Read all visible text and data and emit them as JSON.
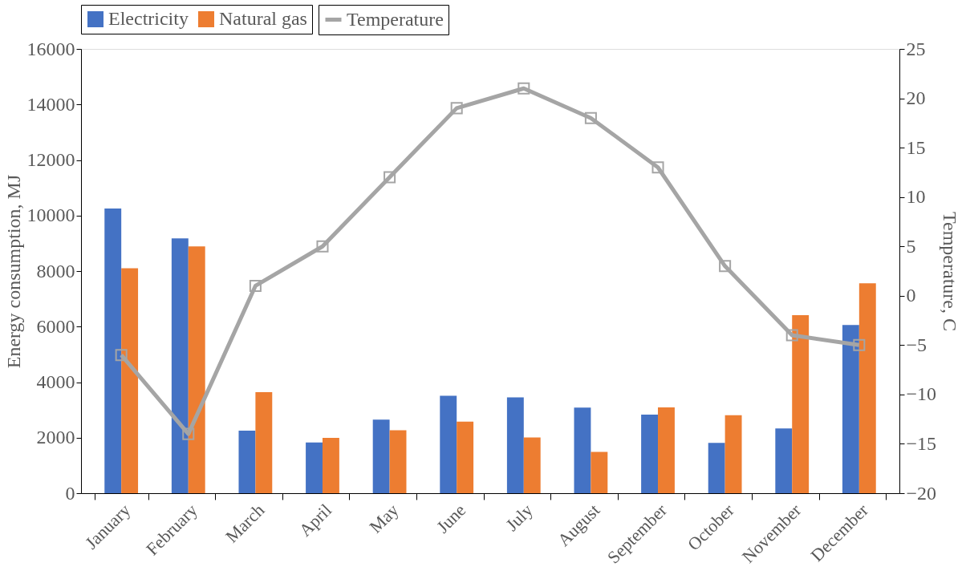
{
  "chart_data": {
    "type": "bar",
    "ylabel": "Energy consumption, MJ",
    "y2label": "Temperature, C",
    "categories": [
      "January",
      "February",
      "March",
      "April",
      "May",
      "June",
      "July",
      "August",
      "September",
      "October",
      "November",
      "December"
    ],
    "series": [
      {
        "name": "Electricity",
        "color": "#4472c4",
        "values": [
          10250,
          9180,
          2250,
          1830,
          2650,
          3510,
          3450,
          3080,
          2830,
          1810,
          2330,
          6060
        ]
      },
      {
        "name": "Natural gas",
        "color": "#ed7d31",
        "values": [
          8100,
          8890,
          3640,
          1990,
          2270,
          2580,
          2010,
          1490,
          3090,
          2810,
          6410,
          7560
        ]
      },
      {
        "name": "Temperature",
        "type": "line",
        "axis": "y2",
        "color": "#a5a5a5",
        "marker": "square",
        "values": [
          -6,
          -14,
          1,
          5,
          12,
          19,
          21,
          18,
          13,
          3,
          -4,
          -5
        ]
      }
    ],
    "ylim": [
      0,
      16000
    ],
    "yticks": [
      0,
      2000,
      4000,
      6000,
      8000,
      10000,
      12000,
      14000,
      16000
    ],
    "y2lim": [
      -20,
      25
    ],
    "y2ticks": [
      -20,
      -15,
      -10,
      -5,
      0,
      5,
      10,
      15,
      20,
      25
    ],
    "grid": false,
    "legend": "top"
  }
}
